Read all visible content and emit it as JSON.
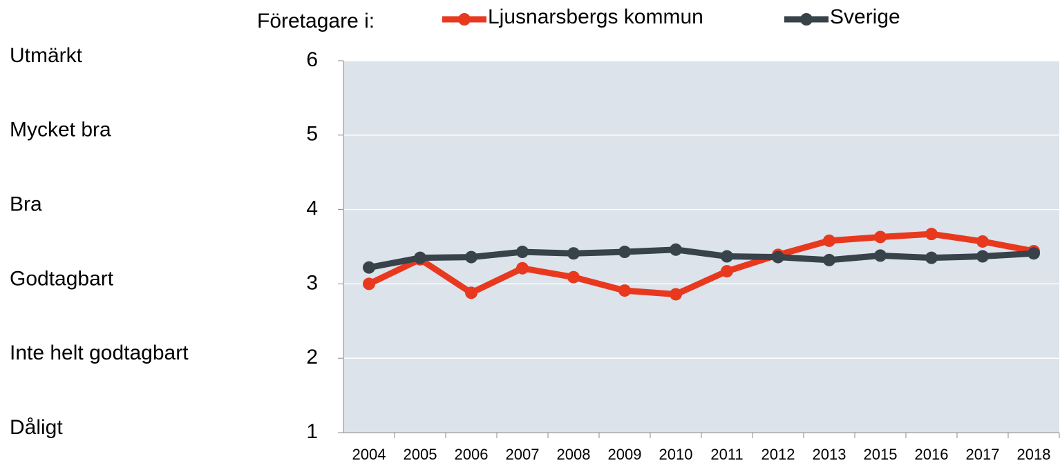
{
  "chart_data": {
    "type": "line",
    "legend_title": "Företagare i:",
    "rating_labels": [
      "Dåligt",
      "Inte helt godtagbart",
      "Godtagbart",
      "Bra",
      "Mycket bra",
      "Utmärkt"
    ],
    "categories": [
      "2004",
      "2005",
      "2006",
      "2007",
      "2008",
      "2009",
      "2010",
      "2011",
      "2012",
      "2013",
      "2015",
      "2016",
      "2017",
      "2018"
    ],
    "series": [
      {
        "name": "Ljusnarsbergs kommun",
        "color": "#e8391f",
        "values": [
          3.0,
          3.33,
          2.88,
          3.21,
          3.09,
          2.91,
          2.86,
          3.17,
          3.39,
          3.58,
          3.63,
          3.67,
          3.57,
          3.44
        ]
      },
      {
        "name": "Sverige",
        "color": "#37424a",
        "values": [
          3.22,
          3.35,
          3.36,
          3.43,
          3.41,
          3.43,
          3.46,
          3.37,
          3.36,
          3.32,
          3.38,
          3.35,
          3.37,
          3.41
        ]
      }
    ],
    "ylim": [
      1,
      6
    ],
    "yticks": [
      1,
      2,
      3,
      4,
      5,
      6
    ],
    "grid": true,
    "plot_background": "#dce3ea"
  }
}
